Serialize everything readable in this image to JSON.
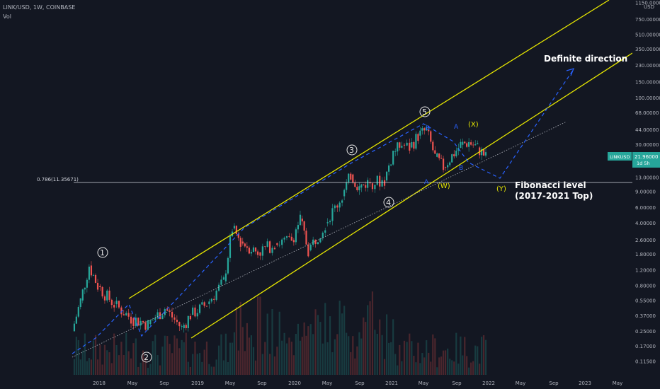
{
  "header": {
    "symbol_line": "LINK/USD, 1W, COINBASE",
    "indicator": "Vol"
  },
  "axis": {
    "currency": "USD",
    "y_ticks": [
      "1150.00000",
      "750.00000",
      "510.00000",
      "350.00000",
      "230.00000",
      "150.00000",
      "100.00000",
      "68.00000",
      "44.00000",
      "30.00000",
      "13.00000",
      "9.00000",
      "6.00000",
      "4.00000",
      "2.60000",
      "1.80000",
      "1.20000",
      "0.80000",
      "0.55000",
      "0.37000",
      "0.25000",
      "0.17000",
      "0.11500"
    ],
    "x_ticks": [
      "2018",
      "May",
      "Sep",
      "2019",
      "May",
      "Sep",
      "2020",
      "May",
      "Sep",
      "2021",
      "May",
      "Sep",
      "2022",
      "May",
      "Sep",
      "2023",
      "May"
    ]
  },
  "price_badge": {
    "symbol": "LINKUSD",
    "price": "21.96000",
    "countdown": "1d 5h"
  },
  "fib": {
    "label": "0.786(11.35671)",
    "text_line1": "Fibonacci level",
    "text_line2": "(2017-2021 Top)"
  },
  "annotations": {
    "definite_direction": "Definite direction"
  },
  "waves": {
    "w1": "1",
    "w2": "2",
    "w3": "3",
    "w4": "4",
    "w5": "5",
    "A_top": "A",
    "B_top": "B",
    "X": "(X)",
    "A_low": "A",
    "B_low": "B",
    "W": "(W)",
    "Y": "(Y)"
  },
  "colors": {
    "background": "#131722",
    "up_candle": "#26a69a",
    "down_candle": "#ef5350",
    "channel": "#e6e600",
    "wave_path": "#2962ff",
    "price_badge": "#26a69a"
  },
  "chart_data": {
    "type": "candlestick",
    "scale": "log",
    "x": [
      "2017-11",
      "2017-12",
      "2018-01",
      "2018-02",
      "2018-04",
      "2018-06",
      "2018-08",
      "2018-10",
      "2018-12",
      "2019-01",
      "2019-03",
      "2019-05",
      "2019-06",
      "2019-07",
      "2019-09",
      "2019-11",
      "2020-01",
      "2020-02",
      "2020-03",
      "2020-05",
      "2020-07",
      "2020-08",
      "2020-09",
      "2020-10",
      "2020-12",
      "2021-01",
      "2021-02",
      "2021-03",
      "2021-04",
      "2021-05",
      "2021-06",
      "2021-07",
      "2021-09",
      "2021-10",
      "2021-11",
      "2021-12"
    ],
    "close": [
      0.25,
      0.55,
      1.35,
      0.8,
      0.5,
      0.35,
      0.3,
      0.45,
      0.27,
      0.38,
      0.5,
      0.9,
      3.5,
      2.5,
      1.9,
      2.4,
      2.6,
      4.5,
      2.0,
      4.0,
      8.0,
      14.0,
      10.0,
      11.5,
      12.0,
      25.0,
      30.0,
      28.0,
      38.0,
      44.0,
      22.0,
      17.0,
      30.0,
      32.0,
      28.0,
      21.96
    ],
    "ylim": [
      0.1,
      1150
    ],
    "ylabel": "USD"
  }
}
